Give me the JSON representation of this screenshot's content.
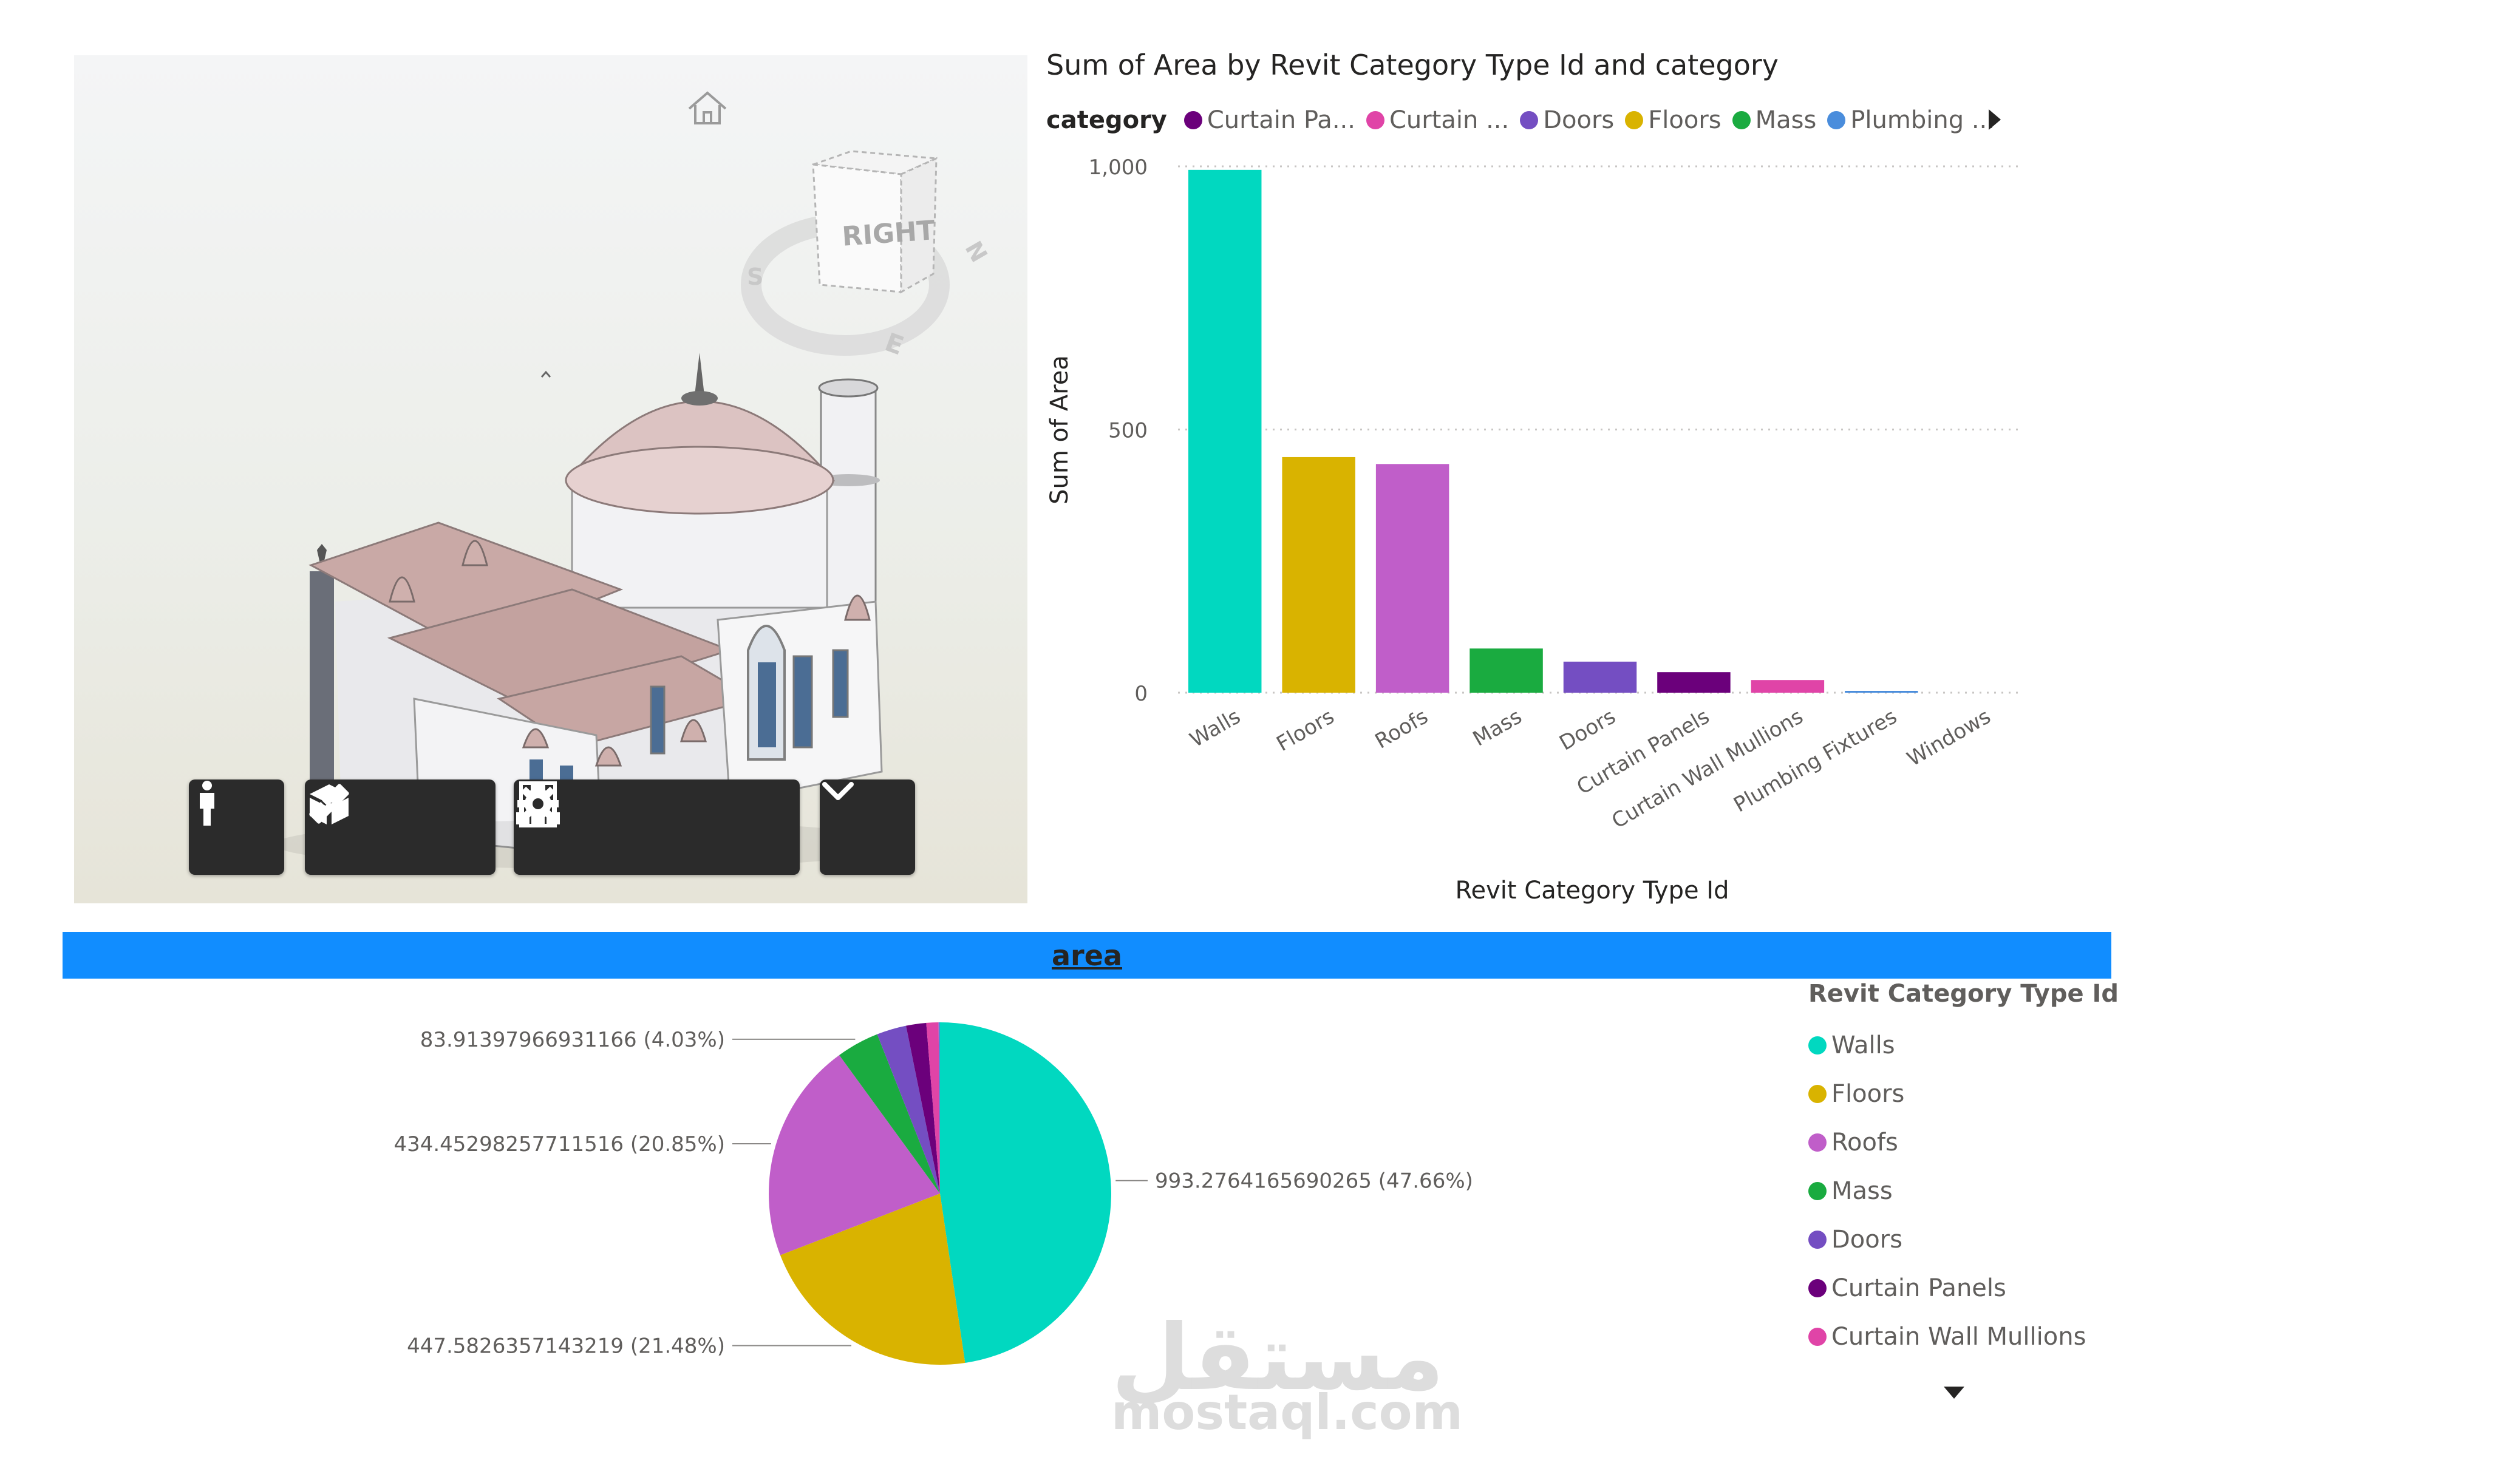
{
  "viewer": {
    "viewcube_label": "RIGHT",
    "compass": [
      "S",
      "E",
      "N"
    ],
    "colors": {
      "roof": "#c9a9a6",
      "dome": "#e0c8c6",
      "walls": "#f3f3f5",
      "toolbar": "#2b2b2b"
    },
    "toolbar": [
      {
        "name": "first-person-icon"
      },
      {
        "name": "measure-icon"
      },
      {
        "name": "section-box-icon"
      },
      {
        "name": "model-browser-icon"
      },
      {
        "name": "properties-icon"
      },
      {
        "name": "settings-icon"
      },
      {
        "name": "chevron-down-icon"
      }
    ]
  },
  "chart_data": [
    {
      "type": "bar",
      "title": "Sum of Area by Revit Category Type Id and category",
      "xlabel": "Revit Category Type Id",
      "ylabel": "Sum of Area",
      "ylim": [
        0,
        1000
      ],
      "yticks": [
        "0",
        "500",
        "1,000"
      ],
      "grid": "dotted",
      "legend": {
        "title": "category",
        "placement": "top",
        "items": [
          {
            "label": "Curtain Pa...",
            "color": "#6b007b"
          },
          {
            "label": "Curtain ...",
            "color": "#e044a7"
          },
          {
            "label": "Doors",
            "color": "#744ec2"
          },
          {
            "label": "Floors",
            "color": "#d9b300"
          },
          {
            "label": "Mass",
            "color": "#1aab40"
          },
          {
            "label": "Plumbing ...",
            "color": "#4a8ddc"
          }
        ]
      },
      "categories": [
        "Walls",
        "Floors",
        "Roofs",
        "Mass",
        "Doors",
        "Curtain Panels",
        "Curtain Wall Mullions",
        "Plumbing Fixtures",
        "Windows"
      ],
      "values": [
        993.28,
        447.58,
        434.45,
        83.91,
        59,
        39,
        24,
        3,
        0
      ],
      "colors": [
        "#01d8c0",
        "#d9b300",
        "#c05ec9",
        "#1aab40",
        "#744ec2",
        "#6b007b",
        "#e044a7",
        "#4a8ddc",
        "#8a8886"
      ]
    },
    {
      "type": "pie",
      "title": "area",
      "legend": {
        "title": "Revit Category Type Id",
        "placement": "right"
      },
      "slices": [
        {
          "label": "Walls",
          "value": 993.2764165690265,
          "pct": 47.66,
          "color": "#01d8c0",
          "text": "993.2764165690265 (47.66%)"
        },
        {
          "label": "Floors",
          "value": 447.5826357143219,
          "pct": 21.48,
          "color": "#d9b300",
          "text": "447.5826357143219 (21.48%)"
        },
        {
          "label": "Roofs",
          "value": 434.45298257711516,
          "pct": 20.85,
          "color": "#c05ec9",
          "text": "434.45298257711516 (20.85%)"
        },
        {
          "label": "Mass",
          "value": 83.91397966931166,
          "pct": 4.03,
          "color": "#1aab40",
          "text": "83.91397966931166 (4.03%)"
        },
        {
          "label": "Doors",
          "pct": 2.8,
          "color": "#744ec2",
          "text": ""
        },
        {
          "label": "Curtain Panels",
          "pct": 1.9,
          "color": "#6b007b",
          "text": ""
        },
        {
          "label": "Curtain Wall Mullions",
          "pct": 1.15,
          "color": "#e044a7",
          "text": ""
        },
        {
          "label": "Plumbing Fixtures",
          "pct": 0.13,
          "color": "#4a8ddc",
          "text": ""
        }
      ],
      "legend_items": [
        "Walls",
        "Floors",
        "Roofs",
        "Mass",
        "Doors",
        "Curtain Panels",
        "Curtain Wall Mullions"
      ]
    }
  ],
  "watermark": {
    "arabic": "مستقل",
    "latin": "mostaql.com"
  }
}
